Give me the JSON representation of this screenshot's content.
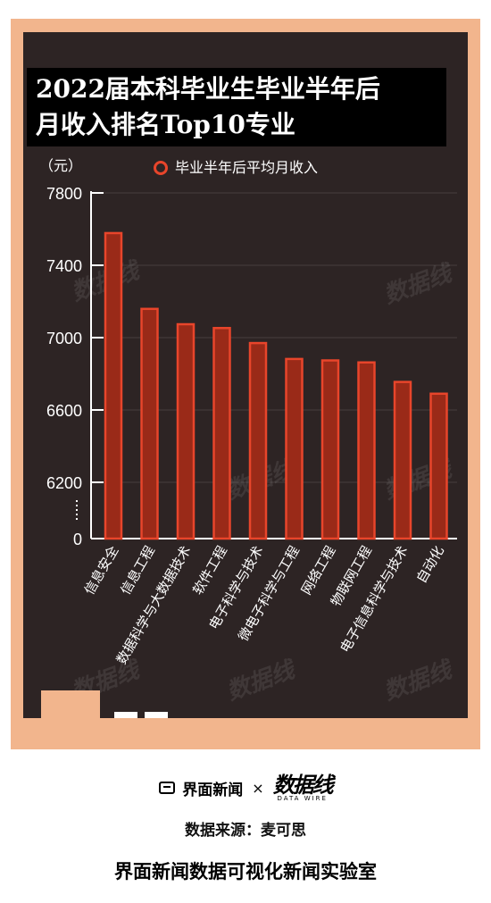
{
  "title_lines": [
    "2022届本科毕业生毕业半年后",
    "月收入排名Top10专业"
  ],
  "unit": "（元）",
  "chart_data": {
    "type": "bar",
    "title": "2022届本科毕业生毕业半年后月收入排名Top10专业",
    "ylabel": "（元）",
    "categories": [
      "信息安全",
      "信息工程",
      "数据科学与大数据技术",
      "软件工程",
      "电子科学与技术",
      "微电子科学与工程",
      "网络工程",
      "物联网工程",
      "电子信息科学与技术",
      "自动化"
    ],
    "series": [
      {
        "name": "毕业半年后平均月收入",
        "values": [
          7578,
          7159,
          7074,
          7053,
          6970,
          6882,
          6874,
          6863,
          6755,
          6690
        ]
      }
    ],
    "yticks": [
      0,
      6200,
      6600,
      7000,
      7400,
      7800
    ],
    "ylim": [
      6000,
      7800
    ],
    "axis_break": true,
    "legend_position": "top",
    "colors": {
      "bar_border": "#e8452b",
      "bar_fill": "#9a2a18",
      "background": "#2d2424"
    }
  },
  "watermark": "数据线",
  "footer": {
    "brand": "界面新闻",
    "times": "×",
    "logo_main": "数据线",
    "logo_sub": "DATA WIRE",
    "source": "数据来源：麦可思",
    "lab": "界面新闻数据可视化新闻实验室"
  }
}
